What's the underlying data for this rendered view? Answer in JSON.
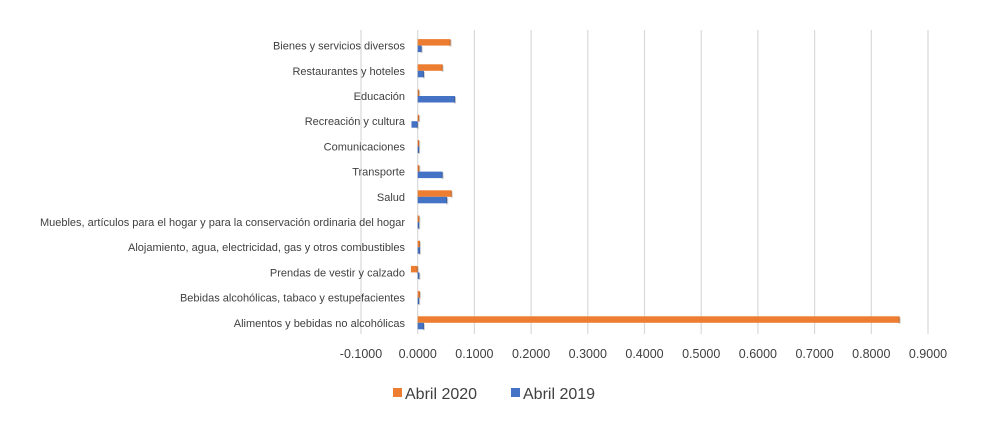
{
  "chart_data": {
    "type": "bar",
    "orientation": "horizontal",
    "title": "",
    "xlabel": "",
    "ylabel": "",
    "xlim": [
      -0.1,
      0.9
    ],
    "x_ticks": [
      -0.1,
      0.0,
      0.1,
      0.2,
      0.3,
      0.4,
      0.5,
      0.6,
      0.7,
      0.8,
      0.9
    ],
    "x_tick_labels": [
      "-0.1000",
      "0.0000",
      "0.1000",
      "0.2000",
      "0.3000",
      "0.4000",
      "0.5000",
      "0.6000",
      "0.7000",
      "0.8000",
      "0.9000"
    ],
    "grid": true,
    "legend_position": "bottom",
    "categories": [
      "Alimentos y bebidas no alcohólicas",
      "Bebidas alcohólicas, tabaco y estupefacientes",
      "Prendas de vestir y calzado",
      "Alojamiento, agua, electricidad, gas y otros combustibles",
      "Muebles, artículos para el hogar y para la conservación ordinaria del hogar",
      "Salud",
      "Transporte",
      "Comunicaciones",
      "Recreación y cultura",
      "Educación",
      "Restaurantes y hoteles",
      "Bienes y servicios diversos"
    ],
    "series": [
      {
        "name": "Abril 2020",
        "color": "#ED7D31",
        "values": [
          0.85,
          0.004,
          -0.012,
          0.004,
          0.003,
          0.06,
          0.003,
          0.001,
          0.002,
          0.002,
          0.044,
          0.058
        ]
      },
      {
        "name": "Abril 2019",
        "color": "#4472C4",
        "values": [
          0.011,
          0.002,
          0.003,
          0.004,
          0.002,
          0.052,
          0.044,
          0.001,
          -0.011,
          0.066,
          0.011,
          0.007
        ]
      }
    ]
  }
}
